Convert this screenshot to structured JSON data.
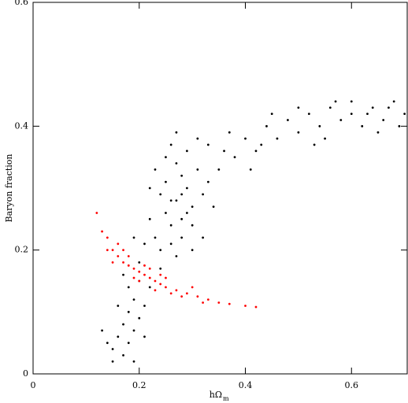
{
  "chart_data": {
    "type": "scatter",
    "x_label": "hΩ",
    "x_label_sub": "m",
    "y_label": "Baryon fraction",
    "xlim": [
      0,
      0.705
    ],
    "ylim": [
      0,
      0.6
    ],
    "xticks": [
      0,
      0.2,
      0.4,
      0.6
    ],
    "yticks": [
      0,
      0.2,
      0.4,
      0.6
    ],
    "series": [
      {
        "color": "#000000",
        "x": [
          0.27,
          0.25,
          0.29,
          0.28,
          0.26,
          0.3,
          0.24,
          0.27,
          0.31,
          0.23,
          0.25,
          0.28,
          0.32,
          0.22,
          0.29,
          0.26,
          0.3,
          0.33,
          0.24,
          0.27,
          0.21,
          0.31,
          0.35,
          0.23,
          0.2,
          0.26,
          0.29,
          0.28,
          0.25,
          0.34,
          0.22,
          0.32,
          0.3,
          0.36,
          0.19,
          0.24,
          0.27,
          0.33,
          0.28,
          0.26,
          0.2,
          0.19,
          0.18,
          0.17,
          0.16,
          0.18,
          0.15,
          0.17,
          0.19,
          0.21,
          0.16,
          0.14,
          0.2,
          0.15,
          0.18,
          0.22,
          0.17,
          0.19,
          0.13,
          0.21,
          0.38,
          0.4,
          0.42,
          0.44,
          0.46,
          0.48,
          0.5,
          0.52,
          0.54,
          0.56,
          0.58,
          0.6,
          0.62,
          0.64,
          0.66,
          0.68,
          0.7,
          0.45,
          0.5,
          0.55,
          0.6,
          0.65,
          0.69,
          0.41,
          0.37,
          0.43,
          0.57,
          0.63,
          0.67,
          0.53
        ],
        "y": [
          0.28,
          0.26,
          0.3,
          0.32,
          0.24,
          0.27,
          0.29,
          0.34,
          0.33,
          0.22,
          0.31,
          0.22,
          0.29,
          0.25,
          0.36,
          0.37,
          0.24,
          0.31,
          0.2,
          0.19,
          0.21,
          0.38,
          0.33,
          0.33,
          0.18,
          0.21,
          0.26,
          0.29,
          0.35,
          0.27,
          0.3,
          0.22,
          0.2,
          0.36,
          0.22,
          0.17,
          0.39,
          0.37,
          0.25,
          0.28,
          0.15,
          0.12,
          0.1,
          0.08,
          0.06,
          0.05,
          0.04,
          0.03,
          0.07,
          0.11,
          0.11,
          0.05,
          0.09,
          0.02,
          0.14,
          0.14,
          0.16,
          0.02,
          0.07,
          0.06,
          0.35,
          0.38,
          0.36,
          0.4,
          0.38,
          0.41,
          0.39,
          0.42,
          0.4,
          0.43,
          0.41,
          0.42,
          0.4,
          0.43,
          0.41,
          0.44,
          0.42,
          0.42,
          0.43,
          0.38,
          0.44,
          0.39,
          0.4,
          0.33,
          0.39,
          0.37,
          0.44,
          0.42,
          0.43,
          0.37
        ]
      },
      {
        "color": "#ff0000",
        "x": [
          0.12,
          0.13,
          0.14,
          0.15,
          0.16,
          0.17,
          0.18,
          0.19,
          0.2,
          0.21,
          0.22,
          0.23,
          0.24,
          0.25,
          0.27,
          0.29,
          0.31,
          0.33,
          0.35,
          0.37,
          0.4,
          0.42,
          0.15,
          0.17,
          0.19,
          0.21,
          0.23,
          0.25,
          0.28,
          0.3,
          0.18,
          0.2,
          0.22,
          0.26,
          0.14,
          0.16,
          0.32,
          0.24
        ],
        "y": [
          0.26,
          0.23,
          0.22,
          0.2,
          0.19,
          0.18,
          0.175,
          0.17,
          0.165,
          0.16,
          0.155,
          0.15,
          0.145,
          0.14,
          0.135,
          0.13,
          0.125,
          0.12,
          0.115,
          0.113,
          0.11,
          0.108,
          0.18,
          0.2,
          0.155,
          0.175,
          0.135,
          0.155,
          0.125,
          0.14,
          0.19,
          0.15,
          0.17,
          0.13,
          0.2,
          0.21,
          0.115,
          0.16
        ]
      }
    ]
  }
}
